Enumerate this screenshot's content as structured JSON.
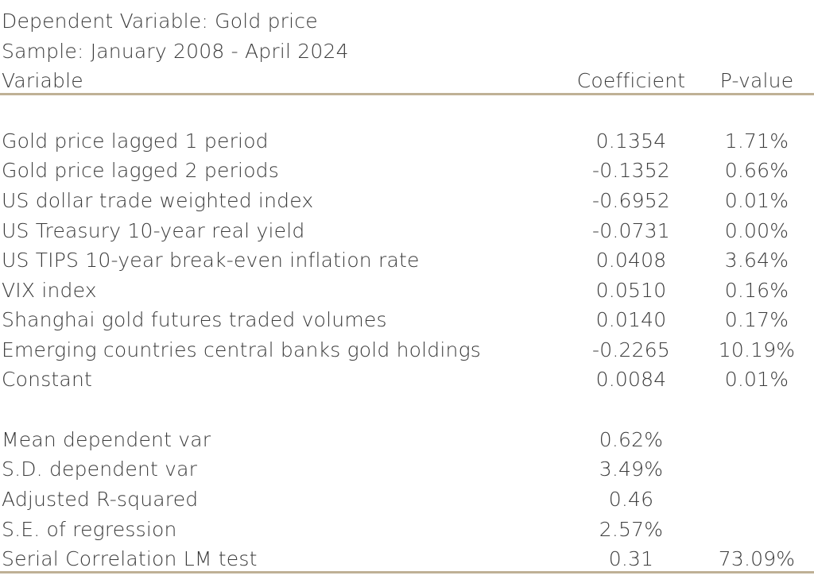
{
  "header": {
    "dependent": "Dependent Variable: Gold price",
    "sample": "Sample: January 2008 - April 2024",
    "col_variable": "Variable",
    "col_coefficient": "Coefficient",
    "col_pvalue": "P-value"
  },
  "variables": [
    {
      "name": "Gold price lagged 1 period",
      "coef": "0.1354",
      "pval": "1.71%"
    },
    {
      "name": "Gold price lagged 2 periods",
      "coef": "-0.1352",
      "pval": "0.66%"
    },
    {
      "name": "US dollar trade weighted index",
      "coef": "-0.6952",
      "pval": "0.01%"
    },
    {
      "name": "US Treasury 10-year real yield",
      "coef": "-0.0731",
      "pval": "0.00%"
    },
    {
      "name": "US TIPS 10-year break-even inflation rate",
      "coef": "0.0408",
      "pval": "3.64%"
    },
    {
      "name": "VIX index",
      "coef": "0.0510",
      "pval": "0.16%"
    },
    {
      "name": "Shanghai gold futures traded volumes",
      "coef": "0.0140",
      "pval": "0.17%"
    },
    {
      "name": "Emerging countries central banks gold holdings",
      "coef": "-0.2265",
      "pval": "10.19%"
    },
    {
      "name": "Constant",
      "coef": "0.0084",
      "pval": "0.01%"
    }
  ],
  "stats": [
    {
      "name": "Mean dependent var",
      "coef": "0.62%",
      "pval": ""
    },
    {
      "name": "S.D. dependent var",
      "coef": "3.49%",
      "pval": ""
    },
    {
      "name": "Adjusted R-squared",
      "coef": "0.46",
      "pval": ""
    },
    {
      "name": "S.E. of regression",
      "coef": "2.57%",
      "pval": ""
    },
    {
      "name": "Serial Correlation LM test",
      "coef": "0.31",
      "pval": "73.09%"
    }
  ],
  "colors": {
    "text": "#3b3b3b",
    "rule": "#bfb196"
  }
}
